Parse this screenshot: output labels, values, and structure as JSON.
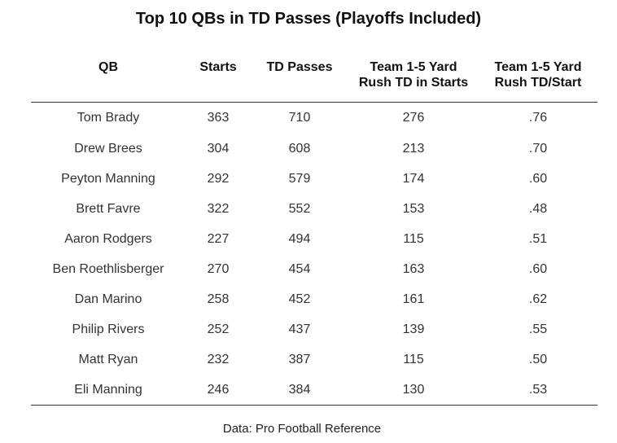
{
  "chart_data": {
    "type": "table",
    "title": "Top 10 QBs in TD Passes (Playoffs Included)",
    "columns": [
      [
        "QB"
      ],
      [
        "Starts"
      ],
      [
        "TD Passes"
      ],
      [
        "Team 1-5 Yard",
        "Rush TD in Starts"
      ],
      [
        "Team 1-5 Yard",
        "Rush TD/Start"
      ]
    ],
    "rows": [
      [
        "Tom Brady",
        "363",
        "710",
        "276",
        ".76"
      ],
      [
        "Drew Brees",
        "304",
        "608",
        "213",
        ".70"
      ],
      [
        "Peyton Manning",
        "292",
        "579",
        "174",
        ".60"
      ],
      [
        "Brett Favre",
        "322",
        "552",
        "153",
        ".48"
      ],
      [
        "Aaron Rodgers",
        "227",
        "494",
        "115",
        ".51"
      ],
      [
        "Ben Roethlisberger",
        "270",
        "454",
        "163",
        ".60"
      ],
      [
        "Dan Marino",
        "258",
        "452",
        "161",
        ".62"
      ],
      [
        "Philip Rivers",
        "252",
        "437",
        "139",
        ".55"
      ],
      [
        "Matt Ryan",
        "232",
        "387",
        "115",
        ".50"
      ],
      [
        "Eli Manning",
        "246",
        "384",
        "130",
        ".53"
      ]
    ],
    "source": "Data: Pro Football Reference"
  }
}
